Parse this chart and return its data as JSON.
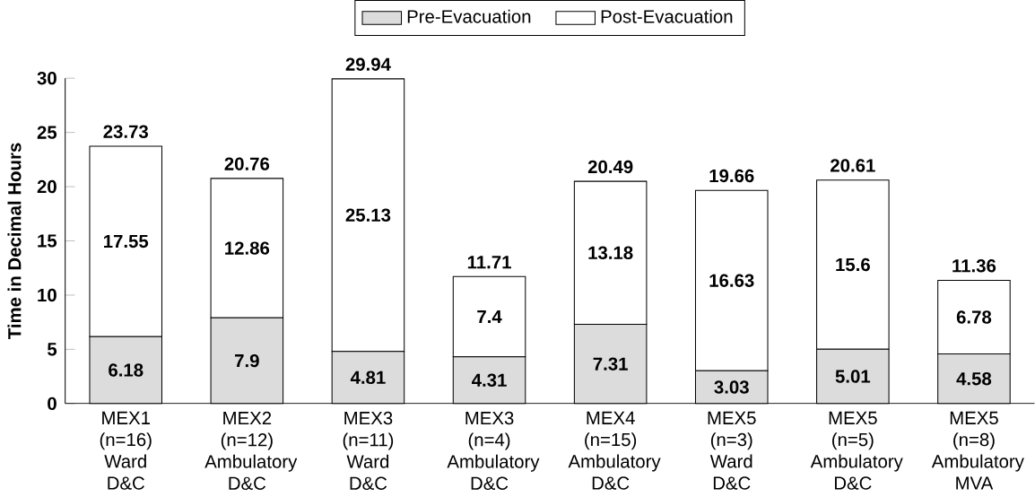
{
  "chart_data": {
    "type": "bar",
    "stacked": true,
    "ylabel": "Time in Decimal Hours",
    "categories": [
      "MEX1 (n=16) Ward D&C",
      "MEX2 (n=12) Ambulatory D&C",
      "MEX3 (n=11) Ward D&C",
      "MEX3 (n=4) Ambulatory D&C",
      "MEX4 (n=15) Ambulatory D&C",
      "MEX5 (n=3) Ward D&C",
      "MEX5 (n=5) Ambulatory D&C",
      "MEX5 (n=8) Ambulatory MVA"
    ],
    "series": [
      {
        "name": "Pre-Evacuation",
        "color": "#dcdcdc",
        "values": [
          6.18,
          7.9,
          4.81,
          4.31,
          7.31,
          3.03,
          5.01,
          4.58
        ]
      },
      {
        "name": "Post-Evacuation",
        "color": "#ffffff",
        "values": [
          17.55,
          12.86,
          25.13,
          7.4,
          13.18,
          16.63,
          15.6,
          6.78
        ]
      }
    ],
    "totals": [
      "23.73",
      "20.76",
      "29.94",
      "11.71",
      "20.49",
      "19.66",
      "20.61",
      "11.36"
    ],
    "data_labels": true,
    "ylim": [
      0,
      30
    ],
    "yticks": [
      0,
      5,
      10,
      15,
      20,
      25,
      30
    ],
    "legend": "top",
    "grid": false
  }
}
